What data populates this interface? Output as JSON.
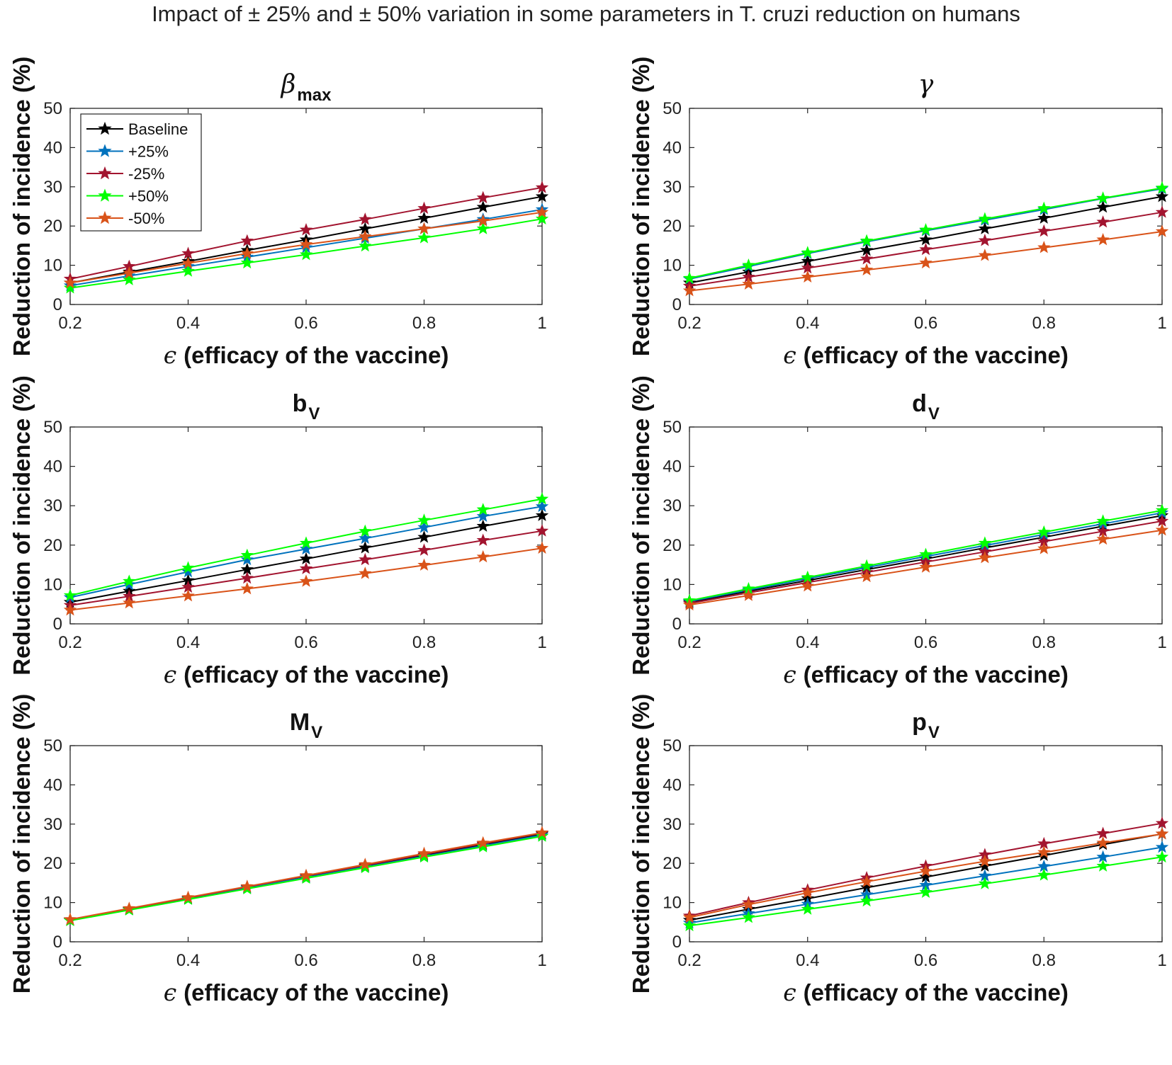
{
  "suptitle": "Impact of ± 25% and ± 50% variation in some parameters in T. cruzi reduction on humans",
  "colors": {
    "Baseline": "#000000",
    "+25%": "#0072BD",
    "-25%": "#A2142F",
    "+50%": "#00FF00",
    "-50%": "#D95319"
  },
  "chart_data": [
    {
      "type": "line",
      "title": {
        "base": "β",
        "sub": "max",
        "greek": true
      },
      "xlabel": {
        "symbol": "ϵ",
        "text": "(efficacy of the vaccine)"
      },
      "ylabel": "Reduction of incidence (%)",
      "xlim": [
        0.2,
        1
      ],
      "ylim": [
        0,
        50
      ],
      "xticks": [
        "0.2",
        "0.4",
        "0.6",
        "0.8",
        "1"
      ],
      "yticks": [
        "0",
        "10",
        "20",
        "30",
        "40",
        "50"
      ],
      "x": [
        0.2,
        0.3,
        0.4,
        0.5,
        0.6,
        0.7,
        0.8,
        0.9,
        1.0
      ],
      "legend": {
        "location": "top-left",
        "entries": [
          "Baseline",
          "+25%",
          "-25%",
          "+50%",
          "-50%"
        ]
      },
      "series": [
        {
          "name": "Baseline",
          "values": [
            5.5,
            8.3,
            11.0,
            13.8,
            16.5,
            19.3,
            22.0,
            24.8,
            27.5
          ]
        },
        {
          "name": "+25%",
          "values": [
            4.8,
            7.3,
            9.7,
            12.1,
            14.5,
            16.9,
            19.3,
            21.7,
            24.2
          ]
        },
        {
          "name": "-25%",
          "values": [
            6.5,
            9.7,
            13.0,
            16.2,
            19.0,
            21.7,
            24.5,
            27.2,
            29.8
          ]
        },
        {
          "name": "+50%",
          "values": [
            4.2,
            6.3,
            8.5,
            10.6,
            12.7,
            14.9,
            17.0,
            19.3,
            21.8
          ]
        },
        {
          "name": "-50%",
          "values": [
            5.5,
            8.0,
            10.5,
            13.0,
            15.3,
            17.3,
            19.3,
            21.3,
            23.5
          ]
        }
      ]
    },
    {
      "type": "line",
      "title": {
        "base": "γ",
        "sub": "",
        "greek": true
      },
      "xlabel": {
        "symbol": "ϵ",
        "text": "(efficacy of the vaccine)"
      },
      "ylabel": "Reduction of incidence (%)",
      "xlim": [
        0.2,
        1
      ],
      "ylim": [
        0,
        50
      ],
      "xticks": [
        "0.2",
        "0.4",
        "0.6",
        "0.8",
        "1"
      ],
      "yticks": [
        "0",
        "10",
        "20",
        "30",
        "40",
        "50"
      ],
      "x": [
        0.2,
        0.3,
        0.4,
        0.5,
        0.6,
        0.7,
        0.8,
        0.9,
        1.0
      ],
      "series": [
        {
          "name": "Baseline",
          "values": [
            5.5,
            8.3,
            11.0,
            13.8,
            16.5,
            19.3,
            22.0,
            24.8,
            27.5
          ]
        },
        {
          "name": "+25%",
          "values": [
            6.5,
            9.7,
            13.0,
            16.0,
            18.8,
            21.5,
            24.2,
            27.0,
            29.5
          ]
        },
        {
          "name": "-25%",
          "values": [
            4.7,
            7.0,
            9.3,
            11.6,
            14.0,
            16.3,
            18.7,
            21.0,
            23.5
          ]
        },
        {
          "name": "+50%",
          "values": [
            6.7,
            10.0,
            13.2,
            16.2,
            19.0,
            21.8,
            24.5,
            27.1,
            29.7
          ]
        },
        {
          "name": "-50%",
          "values": [
            3.5,
            5.2,
            7.0,
            8.8,
            10.6,
            12.5,
            14.5,
            16.5,
            18.6
          ]
        }
      ]
    },
    {
      "type": "line",
      "title": {
        "base": "b",
        "sub": "V",
        "greek": false
      },
      "xlabel": {
        "symbol": "ϵ",
        "text": "(efficacy of the vaccine)"
      },
      "ylabel": "Reduction of incidence (%)",
      "xlim": [
        0.2,
        1
      ],
      "ylim": [
        0,
        50
      ],
      "xticks": [
        "0.2",
        "0.4",
        "0.6",
        "0.8",
        "1"
      ],
      "yticks": [
        "0",
        "10",
        "20",
        "30",
        "40",
        "50"
      ],
      "x": [
        0.2,
        0.3,
        0.4,
        0.5,
        0.6,
        0.7,
        0.8,
        0.9,
        1.0
      ],
      "series": [
        {
          "name": "Baseline",
          "values": [
            5.5,
            8.3,
            11.0,
            13.8,
            16.5,
            19.3,
            22.0,
            24.8,
            27.5
          ]
        },
        {
          "name": "+25%",
          "values": [
            6.7,
            10.0,
            13.2,
            16.3,
            19.0,
            21.7,
            24.5,
            27.3,
            29.8
          ]
        },
        {
          "name": "-25%",
          "values": [
            4.7,
            7.0,
            9.3,
            11.6,
            14.0,
            16.3,
            18.7,
            21.2,
            23.6
          ]
        },
        {
          "name": "+50%",
          "values": [
            7.2,
            10.8,
            14.2,
            17.4,
            20.5,
            23.5,
            26.3,
            29.0,
            31.7
          ]
        },
        {
          "name": "-50%",
          "values": [
            3.5,
            5.3,
            7.1,
            8.9,
            10.8,
            12.8,
            14.9,
            17.0,
            19.2
          ]
        }
      ]
    },
    {
      "type": "line",
      "title": {
        "base": "d",
        "sub": "V",
        "greek": false
      },
      "xlabel": {
        "symbol": "ϵ",
        "text": "(efficacy of the vaccine)"
      },
      "ylabel": "Reduction of incidence (%)",
      "xlim": [
        0.2,
        1
      ],
      "ylim": [
        0,
        50
      ],
      "xticks": [
        "0.2",
        "0.4",
        "0.6",
        "0.8",
        "1"
      ],
      "yticks": [
        "0",
        "10",
        "20",
        "30",
        "40",
        "50"
      ],
      "x": [
        0.2,
        0.3,
        0.4,
        0.5,
        0.6,
        0.7,
        0.8,
        0.9,
        1.0
      ],
      "series": [
        {
          "name": "Baseline",
          "values": [
            5.5,
            8.3,
            11.0,
            13.8,
            16.5,
            19.3,
            22.0,
            24.8,
            27.5
          ]
        },
        {
          "name": "+25%",
          "values": [
            5.7,
            8.6,
            11.5,
            14.3,
            17.1,
            19.9,
            22.7,
            25.4,
            28.2
          ]
        },
        {
          "name": "-25%",
          "values": [
            5.2,
            7.9,
            10.5,
            13.1,
            15.7,
            18.3,
            20.9,
            23.5,
            26.1
          ]
        },
        {
          "name": "+50%",
          "values": [
            5.9,
            8.9,
            11.8,
            14.7,
            17.6,
            20.5,
            23.3,
            26.1,
            28.8
          ]
        },
        {
          "name": "-50%",
          "values": [
            4.8,
            7.2,
            9.6,
            12.0,
            14.4,
            16.8,
            19.1,
            21.5,
            23.8
          ]
        }
      ]
    },
    {
      "type": "line",
      "title": {
        "base": "M",
        "sub": "V",
        "greek": false
      },
      "xlabel": {
        "symbol": "ϵ",
        "text": "(efficacy of the vaccine)"
      },
      "ylabel": "Reduction of incidence (%)",
      "xlim": [
        0.2,
        1
      ],
      "ylim": [
        0,
        50
      ],
      "xticks": [
        "0.2",
        "0.4",
        "0.6",
        "0.8",
        "1"
      ],
      "yticks": [
        "0",
        "10",
        "20",
        "30",
        "40",
        "50"
      ],
      "x": [
        0.2,
        0.3,
        0.4,
        0.5,
        0.6,
        0.7,
        0.8,
        0.9,
        1.0
      ],
      "series": [
        {
          "name": "Baseline",
          "values": [
            5.5,
            8.3,
            11.0,
            13.8,
            16.5,
            19.3,
            22.0,
            24.8,
            27.5
          ]
        },
        {
          "name": "+25%",
          "values": [
            5.5,
            8.2,
            10.9,
            13.7,
            16.4,
            19.1,
            21.8,
            24.5,
            27.2
          ]
        },
        {
          "name": "-25%",
          "values": [
            5.6,
            8.4,
            11.2,
            14.0,
            16.8,
            19.5,
            22.3,
            25.0,
            27.7
          ]
        },
        {
          "name": "+50%",
          "values": [
            5.4,
            8.1,
            10.8,
            13.5,
            16.2,
            18.9,
            21.6,
            24.2,
            26.9
          ]
        },
        {
          "name": "-50%",
          "values": [
            5.7,
            8.5,
            11.3,
            14.1,
            16.9,
            19.7,
            22.5,
            25.2,
            27.8
          ]
        }
      ]
    },
    {
      "type": "line",
      "title": {
        "base": "p",
        "sub": "V",
        "greek": false
      },
      "xlabel": {
        "symbol": "ϵ",
        "text": "(efficacy of the vaccine)"
      },
      "ylabel": "Reduction of incidence (%)",
      "xlim": [
        0.2,
        1
      ],
      "ylim": [
        0,
        50
      ],
      "xticks": [
        "0.2",
        "0.4",
        "0.6",
        "0.8",
        "1"
      ],
      "yticks": [
        "0",
        "10",
        "20",
        "30",
        "40",
        "50"
      ],
      "x": [
        0.2,
        0.3,
        0.4,
        0.5,
        0.6,
        0.7,
        0.8,
        0.9,
        1.0
      ],
      "series": [
        {
          "name": "Baseline",
          "values": [
            5.5,
            8.3,
            11.0,
            13.8,
            16.5,
            19.3,
            22.0,
            24.8,
            27.5
          ]
        },
        {
          "name": "+25%",
          "values": [
            4.8,
            7.2,
            9.6,
            12.0,
            14.4,
            16.8,
            19.2,
            21.6,
            24.1
          ]
        },
        {
          "name": "-25%",
          "values": [
            6.6,
            10.0,
            13.2,
            16.3,
            19.3,
            22.2,
            25.0,
            27.6,
            30.2
          ]
        },
        {
          "name": "+50%",
          "values": [
            4.1,
            6.2,
            8.3,
            10.4,
            12.6,
            14.8,
            17.0,
            19.3,
            21.6
          ]
        },
        {
          "name": "-50%",
          "values": [
            6.2,
            9.5,
            12.5,
            15.3,
            18.0,
            20.5,
            22.8,
            25.2,
            27.5
          ]
        }
      ]
    }
  ]
}
